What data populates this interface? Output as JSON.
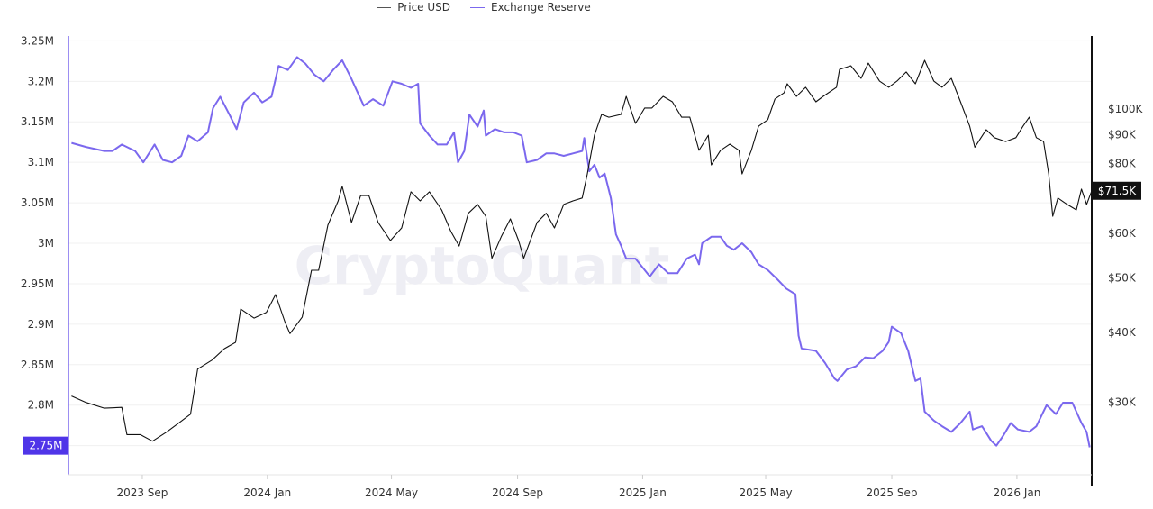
{
  "chart_data": {
    "type": "line",
    "title": "",
    "watermark": "CryptoQuant",
    "legend_position": "top",
    "grid": "horizontal",
    "x_range": [
      "2023-06-21",
      "2026-03-15"
    ],
    "x_ticks": [
      {
        "date": "2023-09-01",
        "label": "2023 Sep"
      },
      {
        "date": "2024-01-01",
        "label": "2024 Jan"
      },
      {
        "date": "2024-05-01",
        "label": "2024 May"
      },
      {
        "date": "2024-09-01",
        "label": "2024 Sep"
      },
      {
        "date": "2025-01-01",
        "label": "2025 Jan"
      },
      {
        "date": "2025-05-01",
        "label": "2025 May"
      },
      {
        "date": "2025-09-01",
        "label": "2025 Sep"
      },
      {
        "date": "2026-01-01",
        "label": "2026 Jan"
      }
    ],
    "left_axis": {
      "series": "Exchange Reserve",
      "unit": "M",
      "ylim": [
        2.714,
        3.256
      ],
      "ticks": [
        {
          "value": 3.25,
          "label": "3.25M"
        },
        {
          "value": 3.2,
          "label": "3.2M"
        },
        {
          "value": 3.15,
          "label": "3.15M"
        },
        {
          "value": 3.1,
          "label": "3.1M"
        },
        {
          "value": 3.05,
          "label": "3.05M"
        },
        {
          "value": 3.0,
          "label": "3M"
        },
        {
          "value": 2.95,
          "label": "2.95M"
        },
        {
          "value": 2.9,
          "label": "2.9M"
        },
        {
          "value": 2.85,
          "label": "2.85M"
        },
        {
          "value": 2.8,
          "label": "2.8M"
        }
      ],
      "current_label": "2.75M",
      "current_value": 2.75
    },
    "right_axis": {
      "series": "Price USD",
      "scale": "log",
      "ylim": [
        22300,
        134900
      ],
      "ticks": [
        {
          "value": 100000,
          "label": "$100K"
        },
        {
          "value": 90000,
          "label": "$90K"
        },
        {
          "value": 80000,
          "label": "$80K"
        },
        {
          "value": 60000,
          "label": "$60K"
        },
        {
          "value": 50000,
          "label": "$50K"
        },
        {
          "value": 40000,
          "label": "$40K"
        },
        {
          "value": 30000,
          "label": "$30K"
        }
      ],
      "current_label": "$71.5K",
      "current_value": 71500
    },
    "series": [
      {
        "name": "Price USD",
        "axis": "right",
        "color": "#111111",
        "points": [
          [
            "2023-06-24",
            30800
          ],
          [
            "2023-07-08",
            30000
          ],
          [
            "2023-07-26",
            29300
          ],
          [
            "2023-08-12",
            29400
          ],
          [
            "2023-08-17",
            26300
          ],
          [
            "2023-08-30",
            26300
          ],
          [
            "2023-09-11",
            25600
          ],
          [
            "2023-09-25",
            26600
          ],
          [
            "2023-10-08",
            27700
          ],
          [
            "2023-10-18",
            28600
          ],
          [
            "2023-10-25",
            34400
          ],
          [
            "2023-11-08",
            35700
          ],
          [
            "2023-11-20",
            37400
          ],
          [
            "2023-12-01",
            38400
          ],
          [
            "2023-12-06",
            44000
          ],
          [
            "2023-12-19",
            42400
          ],
          [
            "2023-12-31",
            43400
          ],
          [
            "2024-01-09",
            46700
          ],
          [
            "2024-01-18",
            41800
          ],
          [
            "2024-01-23",
            39800
          ],
          [
            "2024-02-04",
            42600
          ],
          [
            "2024-02-13",
            51600
          ],
          [
            "2024-02-20",
            51600
          ],
          [
            "2024-02-29",
            62100
          ],
          [
            "2024-03-10",
            68600
          ],
          [
            "2024-03-14",
            72800
          ],
          [
            "2024-03-23",
            62800
          ],
          [
            "2024-04-01",
            70100
          ],
          [
            "2024-04-09",
            70100
          ],
          [
            "2024-04-18",
            62800
          ],
          [
            "2024-04-30",
            58300
          ],
          [
            "2024-05-11",
            61400
          ],
          [
            "2024-05-20",
            71200
          ],
          [
            "2024-05-29",
            68600
          ],
          [
            "2024-06-07",
            71200
          ],
          [
            "2024-06-19",
            66100
          ],
          [
            "2024-06-28",
            60500
          ],
          [
            "2024-07-06",
            57000
          ],
          [
            "2024-07-15",
            65200
          ],
          [
            "2024-07-24",
            67600
          ],
          [
            "2024-08-01",
            64400
          ],
          [
            "2024-08-07",
            54200
          ],
          [
            "2024-08-16",
            59200
          ],
          [
            "2024-08-25",
            63700
          ],
          [
            "2024-09-02",
            58300
          ],
          [
            "2024-09-07",
            54200
          ],
          [
            "2024-09-20",
            62800
          ],
          [
            "2024-09-29",
            65200
          ],
          [
            "2024-10-07",
            61400
          ],
          [
            "2024-10-16",
            67600
          ],
          [
            "2024-10-25",
            68600
          ],
          [
            "2024-11-03",
            69400
          ],
          [
            "2024-11-08",
            76600
          ],
          [
            "2024-11-15",
            89800
          ],
          [
            "2024-11-22",
            97800
          ],
          [
            "2024-11-29",
            96700
          ],
          [
            "2024-12-11",
            97800
          ],
          [
            "2024-12-16",
            105300
          ],
          [
            "2024-12-25",
            94300
          ],
          [
            "2025-01-03",
            100400
          ],
          [
            "2025-01-10",
            100400
          ],
          [
            "2025-01-21",
            105300
          ],
          [
            "2025-01-30",
            103000
          ],
          [
            "2025-02-08",
            96700
          ],
          [
            "2025-02-16",
            96700
          ],
          [
            "2025-02-25",
            84400
          ],
          [
            "2025-03-06",
            89800
          ],
          [
            "2025-03-09",
            79500
          ],
          [
            "2025-03-18",
            84400
          ],
          [
            "2025-03-27",
            86600
          ],
          [
            "2025-04-05",
            84400
          ],
          [
            "2025-04-08",
            76600
          ],
          [
            "2025-04-17",
            84400
          ],
          [
            "2025-04-24",
            93200
          ],
          [
            "2025-05-03",
            95700
          ],
          [
            "2025-05-10",
            104200
          ],
          [
            "2025-05-19",
            106900
          ],
          [
            "2025-05-22",
            110900
          ],
          [
            "2025-05-31",
            105300
          ],
          [
            "2025-06-09",
            109300
          ],
          [
            "2025-06-19",
            103000
          ],
          [
            "2025-06-26",
            105300
          ],
          [
            "2025-07-09",
            109300
          ],
          [
            "2025-07-12",
            117600
          ],
          [
            "2025-07-23",
            119400
          ],
          [
            "2025-08-02",
            113400
          ],
          [
            "2025-08-09",
            120700
          ],
          [
            "2025-08-20",
            112100
          ],
          [
            "2025-08-29",
            109300
          ],
          [
            "2025-09-06",
            112100
          ],
          [
            "2025-09-15",
            116400
          ],
          [
            "2025-09-24",
            110900
          ],
          [
            "2025-10-03",
            122100
          ],
          [
            "2025-10-12",
            112100
          ],
          [
            "2025-10-20",
            109300
          ],
          [
            "2025-10-29",
            113400
          ],
          [
            "2025-11-07",
            103000
          ],
          [
            "2025-11-16",
            93200
          ],
          [
            "2025-11-21",
            85500
          ],
          [
            "2025-12-02",
            91900
          ],
          [
            "2025-12-10",
            88900
          ],
          [
            "2025-12-21",
            87500
          ],
          [
            "2025-12-31",
            88900
          ],
          [
            "2026-01-07",
            93200
          ],
          [
            "2026-01-13",
            96700
          ],
          [
            "2026-01-20",
            88900
          ],
          [
            "2026-01-27",
            87500
          ],
          [
            "2026-02-01",
            76600
          ],
          [
            "2026-02-05",
            64400
          ],
          [
            "2026-02-10",
            69400
          ],
          [
            "2026-02-19",
            67600
          ],
          [
            "2026-02-28",
            66100
          ],
          [
            "2026-03-05",
            72000
          ],
          [
            "2026-03-10",
            67600
          ],
          [
            "2026-03-15",
            71500
          ]
        ]
      },
      {
        "name": "Exchange Reserve",
        "axis": "left",
        "color": "#7B68EE",
        "points": [
          [
            "2023-06-24",
            3.124
          ],
          [
            "2023-07-08",
            3.119
          ],
          [
            "2023-07-26",
            3.114
          ],
          [
            "2023-08-03",
            3.114
          ],
          [
            "2023-08-12",
            3.122
          ],
          [
            "2023-08-25",
            3.114
          ],
          [
            "2023-09-02",
            3.1
          ],
          [
            "2023-09-13",
            3.122
          ],
          [
            "2023-09-21",
            3.103
          ],
          [
            "2023-09-30",
            3.1
          ],
          [
            "2023-10-09",
            3.108
          ],
          [
            "2023-10-16",
            3.133
          ],
          [
            "2023-10-25",
            3.126
          ],
          [
            "2023-11-04",
            3.137
          ],
          [
            "2023-11-09",
            3.167
          ],
          [
            "2023-11-16",
            3.181
          ],
          [
            "2023-11-25",
            3.159
          ],
          [
            "2023-12-02",
            3.141
          ],
          [
            "2023-12-09",
            3.174
          ],
          [
            "2023-12-19",
            3.186
          ],
          [
            "2023-12-27",
            3.174
          ],
          [
            "2024-01-05",
            3.181
          ],
          [
            "2024-01-12",
            3.219
          ],
          [
            "2024-01-21",
            3.214
          ],
          [
            "2024-01-30",
            3.23
          ],
          [
            "2024-02-07",
            3.222
          ],
          [
            "2024-02-16",
            3.208
          ],
          [
            "2024-02-25",
            3.2
          ],
          [
            "2024-03-05",
            3.214
          ],
          [
            "2024-03-14",
            3.226
          ],
          [
            "2024-03-23",
            3.203
          ],
          [
            "2024-03-28",
            3.189
          ],
          [
            "2024-04-04",
            3.17
          ],
          [
            "2024-04-13",
            3.178
          ],
          [
            "2024-04-23",
            3.17
          ],
          [
            "2024-05-02",
            3.2
          ],
          [
            "2024-05-11",
            3.197
          ],
          [
            "2024-05-20",
            3.192
          ],
          [
            "2024-05-27",
            3.197
          ],
          [
            "2024-05-29",
            3.148
          ],
          [
            "2024-06-07",
            3.133
          ],
          [
            "2024-06-15",
            3.122
          ],
          [
            "2024-06-24",
            3.122
          ],
          [
            "2024-07-01",
            3.137
          ],
          [
            "2024-07-05",
            3.1
          ],
          [
            "2024-07-11",
            3.114
          ],
          [
            "2024-07-16",
            3.159
          ],
          [
            "2024-07-24",
            3.144
          ],
          [
            "2024-07-30",
            3.164
          ],
          [
            "2024-08-01",
            3.133
          ],
          [
            "2024-08-10",
            3.141
          ],
          [
            "2024-08-19",
            3.137
          ],
          [
            "2024-08-28",
            3.137
          ],
          [
            "2024-09-05",
            3.133
          ],
          [
            "2024-09-10",
            3.1
          ],
          [
            "2024-09-20",
            3.103
          ],
          [
            "2024-09-29",
            3.111
          ],
          [
            "2024-10-07",
            3.111
          ],
          [
            "2024-10-16",
            3.108
          ],
          [
            "2024-10-25",
            3.111
          ],
          [
            "2024-11-03",
            3.114
          ],
          [
            "2024-11-05",
            3.13
          ],
          [
            "2024-11-10",
            3.089
          ],
          [
            "2024-11-15",
            3.097
          ],
          [
            "2024-11-20",
            3.081
          ],
          [
            "2024-11-25",
            3.086
          ],
          [
            "2024-12-01",
            3.056
          ],
          [
            "2024-12-06",
            3.011
          ],
          [
            "2024-12-11",
            2.997
          ],
          [
            "2024-12-16",
            2.981
          ],
          [
            "2024-12-25",
            2.981
          ],
          [
            "2025-01-03",
            2.967
          ],
          [
            "2025-01-08",
            2.959
          ],
          [
            "2025-01-17",
            2.974
          ],
          [
            "2025-01-26",
            2.963
          ],
          [
            "2025-02-04",
            2.963
          ],
          [
            "2025-02-13",
            2.981
          ],
          [
            "2025-02-21",
            2.986
          ],
          [
            "2025-02-25",
            2.974
          ],
          [
            "2025-02-28",
            3.0
          ],
          [
            "2025-03-09",
            3.008
          ],
          [
            "2025-03-18",
            3.008
          ],
          [
            "2025-03-24",
            2.997
          ],
          [
            "2025-03-31",
            2.992
          ],
          [
            "2025-04-08",
            3.0
          ],
          [
            "2025-04-17",
            2.989
          ],
          [
            "2025-04-24",
            2.974
          ],
          [
            "2025-05-03",
            2.967
          ],
          [
            "2025-05-12",
            2.956
          ],
          [
            "2025-05-21",
            2.944
          ],
          [
            "2025-05-30",
            2.937
          ],
          [
            "2025-06-02",
            2.886
          ],
          [
            "2025-06-05",
            2.87
          ],
          [
            "2025-06-19",
            2.867
          ],
          [
            "2025-06-28",
            2.852
          ],
          [
            "2025-07-07",
            2.833
          ],
          [
            "2025-07-10",
            2.83
          ],
          [
            "2025-07-19",
            2.844
          ],
          [
            "2025-07-28",
            2.848
          ],
          [
            "2025-08-06",
            2.859
          ],
          [
            "2025-08-14",
            2.858
          ],
          [
            "2025-08-23",
            2.867
          ],
          [
            "2025-08-29",
            2.878
          ],
          [
            "2025-09-01",
            2.897
          ],
          [
            "2025-09-10",
            2.889
          ],
          [
            "2025-09-17",
            2.867
          ],
          [
            "2025-09-24",
            2.83
          ],
          [
            "2025-09-29",
            2.833
          ],
          [
            "2025-10-03",
            2.792
          ],
          [
            "2025-10-12",
            2.781
          ],
          [
            "2025-10-20",
            2.774
          ],
          [
            "2025-10-29",
            2.767
          ],
          [
            "2025-11-07",
            2.778
          ],
          [
            "2025-11-16",
            2.792
          ],
          [
            "2025-11-19",
            2.77
          ],
          [
            "2025-11-28",
            2.774
          ],
          [
            "2025-12-07",
            2.756
          ],
          [
            "2025-12-12",
            2.75
          ],
          [
            "2025-12-19",
            2.763
          ],
          [
            "2025-12-26",
            2.778
          ],
          [
            "2026-01-02",
            2.77
          ],
          [
            "2026-01-13",
            2.767
          ],
          [
            "2026-01-20",
            2.774
          ],
          [
            "2026-01-30",
            2.8
          ],
          [
            "2026-02-08",
            2.789
          ],
          [
            "2026-02-15",
            2.803
          ],
          [
            "2026-02-24",
            2.803
          ],
          [
            "2026-03-05",
            2.778
          ],
          [
            "2026-03-10",
            2.767
          ],
          [
            "2026-03-13",
            2.748
          ]
        ]
      }
    ]
  }
}
